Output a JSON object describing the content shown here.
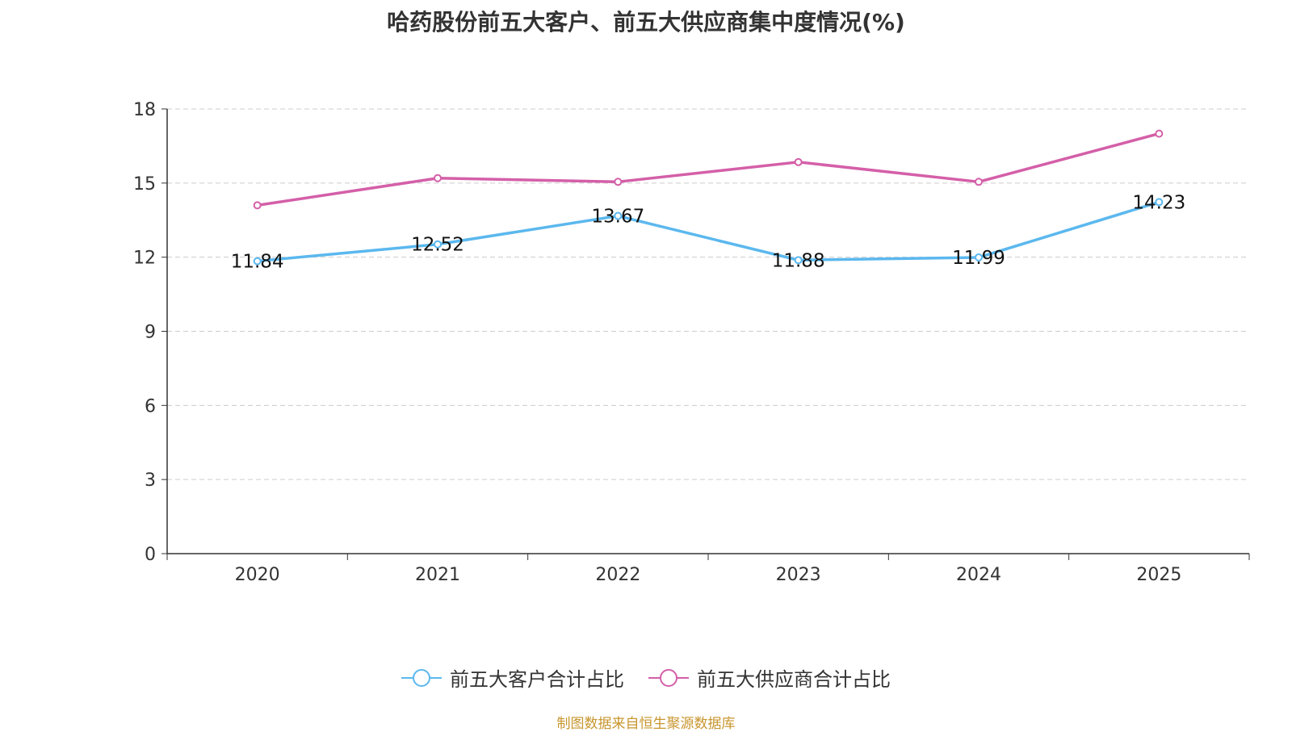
{
  "chart_data": {
    "type": "line",
    "title": "哈药股份前五大客户、前五大供应商集中度情况(%)",
    "categories": [
      "2020",
      "2021",
      "2022",
      "2023",
      "2024",
      "2025"
    ],
    "yticks": [
      0,
      3,
      6,
      9,
      12,
      15,
      18
    ],
    "ylim": [
      0,
      18
    ],
    "xlabel": "",
    "ylabel": "",
    "grid": true,
    "legend_position": "bottom",
    "series": [
      {
        "name": "前五大客户合计占比",
        "color": "#5bb8ee",
        "values": [
          11.84,
          12.52,
          13.67,
          11.88,
          11.99,
          14.23
        ],
        "labels": [
          "11.84",
          "12.52",
          "13.67",
          "11.88",
          "11.99",
          "14.23"
        ]
      },
      {
        "name": "前五大供应商合计占比",
        "color": "#d45fa8",
        "values": [
          14.1,
          15.2,
          15.05,
          15.85,
          15.05,
          17.0
        ]
      }
    ]
  },
  "source": "制图数据来自恒生聚源数据库"
}
